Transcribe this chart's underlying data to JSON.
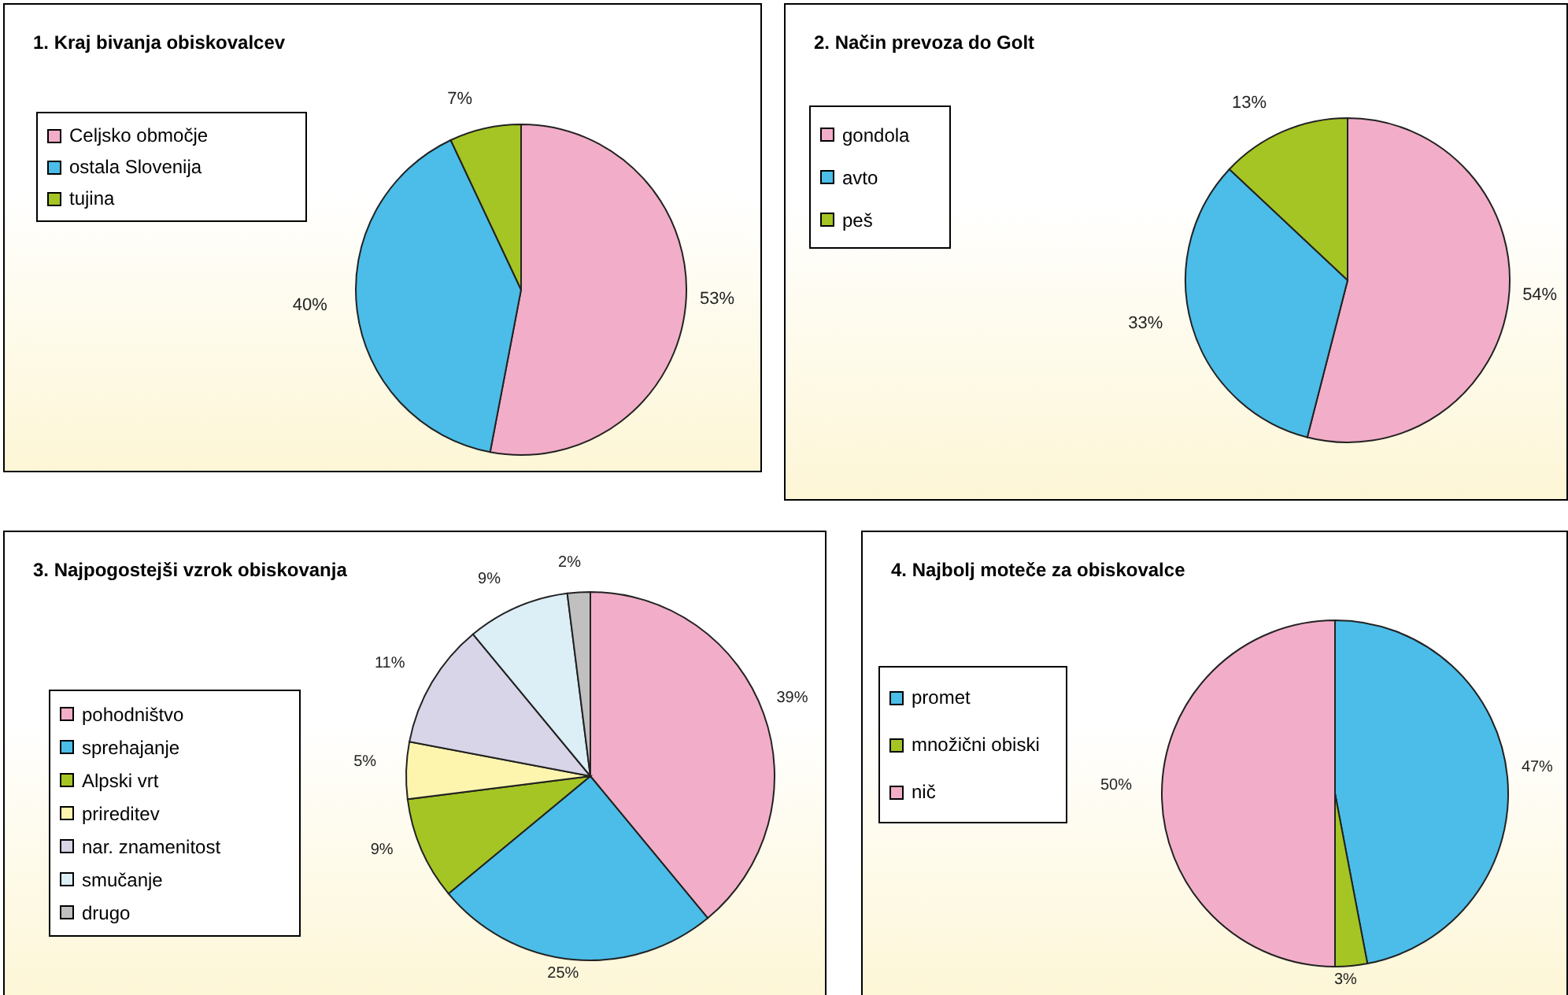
{
  "chart_data": [
    {
      "type": "pie",
      "title": "1. Kraj bivanja obiskovalcev",
      "categories": [
        "Celjsko območje",
        "ostala Slovenija",
        "tujina"
      ],
      "values": [
        53,
        40,
        7
      ],
      "value_labels": [
        "53%",
        "40%",
        "7%"
      ],
      "colors": [
        "#f2aec8",
        "#4bbde8",
        "#a5c524"
      ],
      "legend": "top left"
    },
    {
      "type": "pie",
      "title": "2. Način prevoza do Golt",
      "categories": [
        "gondola",
        "avto",
        "peš"
      ],
      "values": [
        54,
        33,
        13
      ],
      "value_labels": [
        "54%",
        "33%",
        "13%"
      ],
      "colors": [
        "#f2aec8",
        "#4bbde8",
        "#a5c524"
      ],
      "legend": "top left"
    },
    {
      "type": "pie",
      "title": "3. Najpogostejši vzrok obiskovanja",
      "categories": [
        "pohodništvo",
        "sprehajanje",
        "Alpski vrt",
        "prireditev",
        "nar. znamenitost",
        "smučanje",
        "drugo"
      ],
      "values": [
        39,
        25,
        9,
        5,
        11,
        9,
        2
      ],
      "value_labels": [
        "39%",
        "25%",
        "9%",
        "5%",
        "11%",
        "9%",
        "2%"
      ],
      "colors": [
        "#f2aec8",
        "#4bbde8",
        "#a5c524",
        "#fdf5ae",
        "#d8d5e8",
        "#dceef6",
        "#c0c0c0"
      ],
      "legend": "left"
    },
    {
      "type": "pie",
      "title": "4. Najbolj moteče za obiskovalce",
      "categories": [
        "promet",
        "množični obiski",
        "nič"
      ],
      "values": [
        47,
        3,
        50
      ],
      "value_labels": [
        "47%",
        "3%",
        "50%"
      ],
      "colors": [
        "#4bbde8",
        "#a5c524",
        "#f2aec8"
      ],
      "legend": "left"
    }
  ]
}
